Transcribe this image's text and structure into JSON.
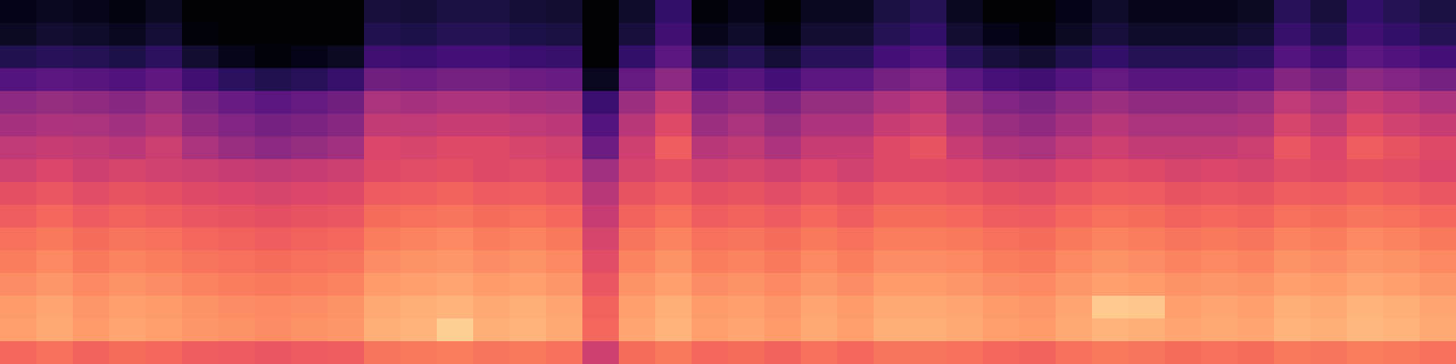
{
  "chart_data": {
    "type": "heatmap",
    "tick_labels": false,
    "zlim": [
      0,
      100
    ],
    "z": [
      [
        4,
        6,
        5,
        3,
        7,
        1,
        1,
        1,
        1,
        1,
        11,
        10,
        12,
        12,
        10,
        9,
        1,
        8,
        18,
        2,
        5,
        1,
        6,
        6,
        12,
        15,
        6,
        1,
        1,
        4,
        8,
        5,
        5,
        5,
        7,
        16,
        11,
        18,
        15,
        12
      ],
      [
        7,
        9,
        8,
        6,
        10,
        2,
        1,
        1,
        1,
        1,
        14,
        13,
        15,
        15,
        13,
        12,
        1,
        11,
        21,
        5,
        8,
        3,
        9,
        9,
        15,
        18,
        9,
        4,
        2,
        7,
        11,
        8,
        8,
        8,
        10,
        19,
        14,
        21,
        18,
        15
      ],
      [
        14,
        16,
        15,
        13,
        17,
        9,
        5,
        2,
        4,
        7,
        21,
        20,
        22,
        22,
        20,
        19,
        1,
        18,
        28,
        12,
        15,
        10,
        16,
        16,
        22,
        25,
        16,
        11,
        9,
        14,
        18,
        15,
        15,
        15,
        17,
        26,
        21,
        28,
        25,
        22
      ],
      [
        26,
        28,
        27,
        25,
        29,
        21,
        17,
        14,
        16,
        19,
        33,
        32,
        34,
        34,
        32,
        31,
        6,
        30,
        40,
        24,
        27,
        22,
        28,
        28,
        34,
        37,
        28,
        23,
        21,
        26,
        30,
        27,
        27,
        27,
        29,
        38,
        33,
        40,
        37,
        34
      ],
      [
        40,
        42,
        41,
        39,
        43,
        35,
        31,
        28,
        30,
        33,
        47,
        46,
        48,
        48,
        46,
        45,
        20,
        44,
        54,
        38,
        41,
        36,
        42,
        42,
        48,
        51,
        42,
        37,
        35,
        40,
        44,
        41,
        41,
        41,
        43,
        52,
        47,
        54,
        51,
        48
      ],
      [
        46,
        48,
        47,
        45,
        49,
        41,
        37,
        34,
        36,
        39,
        53,
        52,
        54,
        54,
        52,
        51,
        26,
        50,
        60,
        44,
        47,
        42,
        48,
        48,
        54,
        57,
        48,
        43,
        41,
        46,
        50,
        47,
        47,
        47,
        49,
        58,
        53,
        60,
        57,
        54
      ],
      [
        52,
        54,
        53,
        51,
        55,
        47,
        43,
        40,
        42,
        45,
        59,
        58,
        60,
        60,
        58,
        57,
        32,
        56,
        66,
        50,
        53,
        48,
        54,
        54,
        60,
        63,
        54,
        49,
        47,
        52,
        56,
        53,
        53,
        53,
        55,
        64,
        59,
        66,
        63,
        60
      ],
      [
        57,
        59,
        56,
        58,
        57,
        55,
        54,
        53,
        54,
        55,
        60,
        61,
        62,
        60,
        61,
        59,
        45,
        58,
        61,
        57,
        58,
        56,
        59,
        57,
        60,
        60,
        59,
        57,
        56,
        59,
        61,
        60,
        58,
        59,
        58,
        61,
        60,
        62,
        61,
        59
      ],
      [
        62,
        64,
        61,
        63,
        62,
        60,
        59,
        58,
        59,
        60,
        65,
        66,
        67,
        65,
        66,
        64,
        50,
        63,
        66,
        62,
        63,
        61,
        64,
        62,
        65,
        65,
        64,
        62,
        61,
        64,
        66,
        65,
        63,
        64,
        63,
        66,
        65,
        67,
        66,
        64
      ],
      [
        66,
        68,
        65,
        67,
        66,
        64,
        63,
        62,
        63,
        64,
        69,
        70,
        71,
        69,
        70,
        68,
        54,
        67,
        70,
        66,
        67,
        65,
        68,
        66,
        69,
        69,
        68,
        66,
        65,
        68,
        70,
        69,
        67,
        68,
        67,
        70,
        69,
        71,
        70,
        68
      ],
      [
        70,
        72,
        69,
        71,
        70,
        68,
        67,
        66,
        67,
        68,
        73,
        74,
        75,
        73,
        74,
        72,
        58,
        71,
        74,
        70,
        71,
        69,
        72,
        70,
        73,
        73,
        72,
        70,
        69,
        72,
        74,
        73,
        71,
        72,
        71,
        74,
        73,
        75,
        74,
        72
      ],
      [
        73,
        75,
        72,
        74,
        73,
        71,
        70,
        69,
        70,
        71,
        76,
        77,
        78,
        76,
        77,
        75,
        61,
        74,
        77,
        73,
        74,
        72,
        75,
        73,
        76,
        76,
        75,
        73,
        72,
        75,
        77,
        76,
        74,
        75,
        74,
        77,
        76,
        78,
        77,
        75
      ],
      [
        76,
        78,
        75,
        77,
        76,
        74,
        73,
        72,
        73,
        74,
        79,
        80,
        81,
        79,
        80,
        78,
        64,
        77,
        80,
        76,
        77,
        75,
        78,
        76,
        79,
        79,
        78,
        76,
        75,
        78,
        80,
        79,
        77,
        78,
        77,
        80,
        79,
        81,
        80,
        78
      ],
      [
        79,
        81,
        78,
        80,
        79,
        77,
        76,
        75,
        76,
        77,
        82,
        83,
        84,
        82,
        83,
        81,
        67,
        80,
        83,
        79,
        80,
        78,
        81,
        79,
        82,
        82,
        81,
        79,
        78,
        81,
        89,
        88,
        80,
        81,
        80,
        83,
        82,
        84,
        83,
        81
      ],
      [
        80,
        82,
        79,
        81,
        80,
        78,
        77,
        76,
        77,
        78,
        83,
        84,
        90,
        83,
        84,
        82,
        68,
        81,
        84,
        80,
        81,
        79,
        82,
        80,
        83,
        83,
        82,
        80,
        79,
        82,
        84,
        83,
        81,
        82,
        81,
        84,
        83,
        85,
        84,
        82
      ],
      [
        68,
        70,
        67,
        69,
        68,
        66,
        65,
        64,
        65,
        66,
        71,
        72,
        73,
        71,
        72,
        70,
        56,
        69,
        72,
        68,
        69,
        67,
        70,
        68,
        71,
        71,
        70,
        68,
        67,
        70,
        72,
        71,
        69,
        70,
        69,
        72,
        71,
        73,
        72,
        70
      ]
    ]
  }
}
